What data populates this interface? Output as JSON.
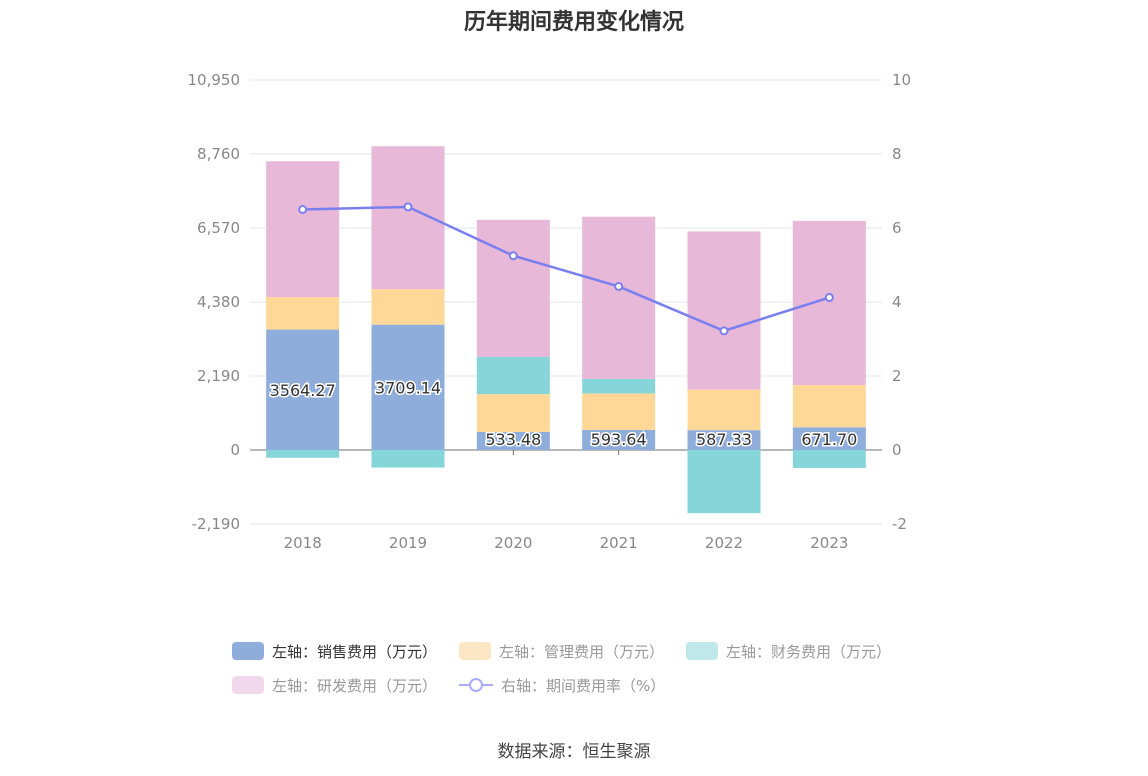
{
  "chart_data": {
    "type": "bar",
    "title": "历年期间费用变化情况",
    "categories": [
      "2018",
      "2019",
      "2020",
      "2021",
      "2022",
      "2023"
    ],
    "stacked": true,
    "series": [
      {
        "name": "左轴：销售费用（万元）",
        "axis": "left",
        "color": "#8eadda",
        "values": [
          3564.27,
          3709.14,
          533.48,
          593.64,
          587.33,
          671.7
        ],
        "labels": [
          "3564.27",
          "3709.14",
          "533.48",
          "593.64",
          "587.33",
          "671.70"
        ]
      },
      {
        "name": "左轴：管理费用（万元）",
        "axis": "left",
        "color": "#ffd898",
        "values": [
          960,
          1050,
          1120,
          1080,
          1200,
          1250
        ]
      },
      {
        "name": "左轴：财务费用（万元）",
        "axis": "left",
        "color": "#86d5d9",
        "values": [
          -230,
          -520,
          1100,
          430,
          -1870,
          -530
        ]
      },
      {
        "name": "左轴：研发费用（万元）",
        "axis": "left",
        "color": "#e8b8d9",
        "values": [
          4020,
          4230,
          4060,
          4800,
          4680,
          4860
        ]
      },
      {
        "name": "右轴：期间费用率（%）",
        "axis": "right",
        "type": "line",
        "color": "#7a7ff0",
        "values": [
          6.5,
          6.57,
          5.25,
          4.42,
          3.22,
          4.12
        ]
      }
    ],
    "left_axis": {
      "min": -2190,
      "max": 10950,
      "ticks": [
        -2190,
        0,
        2190,
        4380,
        6570,
        8760,
        10950
      ],
      "tick_labels": [
        "-2,190",
        "0",
        "2,190",
        "4,380",
        "6,570",
        "8,760",
        "10,950"
      ]
    },
    "right_axis": {
      "min": -2,
      "max": 10,
      "ticks": [
        -2,
        0,
        2,
        4,
        6,
        8,
        10
      ],
      "tick_labels": [
        "-2",
        "0",
        "2",
        "4",
        "6",
        "8",
        "10"
      ]
    },
    "legend_position": "bottom"
  },
  "legend": [
    {
      "label": "左轴：销售费用（万元）",
      "color": "#8eadda",
      "kind": "bar",
      "active": true
    },
    {
      "label": "左轴：管理费用（万元）",
      "color": "#fde6c3",
      "kind": "bar",
      "active": false
    },
    {
      "label": "左轴：财务费用（万元）",
      "color": "#bfe8ea",
      "kind": "bar",
      "active": false
    },
    {
      "label": "左轴：研发费用（万元）",
      "color": "#f2d8ec",
      "kind": "bar",
      "active": false
    },
    {
      "label": "右轴：期间费用率（%）",
      "color": "#a9acf5",
      "kind": "line",
      "active": false
    }
  ],
  "source": "数据来源：恒生聚源"
}
